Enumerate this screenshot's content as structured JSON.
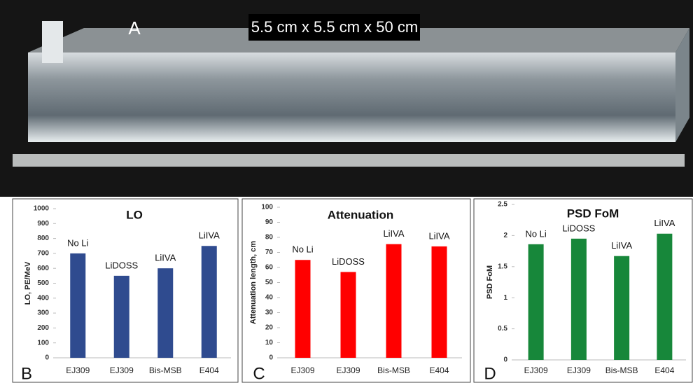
{
  "photo": {
    "label": "A",
    "caption": "5.5 cm x 5.5 cm x 50 cm"
  },
  "chart_data": [
    {
      "type": "bar",
      "panel_label": "B",
      "title": "LO",
      "y_label": "LO, PE/MeV",
      "categories": [
        "EJ309",
        "EJ309",
        "Bis-MSB",
        "E404"
      ],
      "values": [
        700,
        550,
        600,
        750
      ],
      "annotations": [
        "No Li",
        "LiDOSS",
        "LiIVA",
        "LiIVA"
      ],
      "color": "#2f4b8f",
      "ylim": [
        0,
        1000
      ],
      "yticks": [
        0,
        100,
        200,
        300,
        400,
        500,
        600,
        700,
        800,
        900,
        1000
      ],
      "grid": false
    },
    {
      "type": "bar",
      "panel_label": "C",
      "title": "Attenuation",
      "y_label": "Attenuation length, cm",
      "categories": [
        "EJ309",
        "EJ309",
        "Bis-MSB",
        "E404"
      ],
      "values": [
        65,
        57,
        75.5,
        74
      ],
      "annotations": [
        "No Li",
        "LiDOSS",
        "LiIVA",
        "LiIVA"
      ],
      "color": "#ff0000",
      "ylim": [
        0,
        100
      ],
      "yticks": [
        0,
        10,
        20,
        30,
        40,
        50,
        60,
        70,
        80,
        90,
        100
      ],
      "grid": false
    },
    {
      "type": "bar",
      "panel_label": "D",
      "title": "PSD FoM",
      "y_label": "PSD FoM",
      "categories": [
        "EJ309",
        "EJ309",
        "Bis-MSB",
        "E404"
      ],
      "values": [
        1.86,
        1.95,
        1.67,
        2.03
      ],
      "annotations": [
        "No Li",
        "LiDOSS",
        "LiIVA",
        "LiIVA"
      ],
      "color": "#17873a",
      "ylim": [
        0,
        2.5
      ],
      "yticks": [
        0,
        0.5,
        1,
        1.5,
        2,
        2.5
      ],
      "grid": false
    }
  ]
}
